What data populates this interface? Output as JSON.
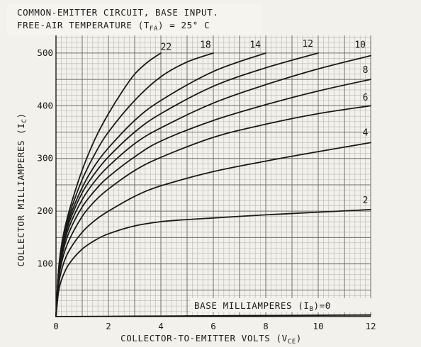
{
  "chart_data": {
    "type": "line",
    "title_lines": [
      "COMMON-EMITTER CIRCUIT, BASE INPUT.",
      "FREE-AIR TEMPERATURE (T",
      ") = 25° C"
    ],
    "title_subscript": "FA",
    "xlabel": "COLLECTOR-TO-EMITTER VOLTS (V",
    "xlabel_subscript": "CE",
    "xlabel_close": ")",
    "ylabel": "COLLECTOR MILLIAMPERES (I",
    "ylabel_subscript": "C",
    "ylabel_close": ")",
    "xlim": [
      0,
      12
    ],
    "ylim": [
      0,
      520
    ],
    "x_ticks": [
      "0",
      "2",
      "4",
      "6",
      "8",
      "10",
      "12"
    ],
    "y_ticks": [
      "100",
      "200",
      "300",
      "400",
      "500"
    ],
    "grid": true,
    "family_label": "BASE MILLIAMPERES (I",
    "family_label_subscript": "B",
    "family_label_close": ")=0",
    "series": [
      {
        "name": "0",
        "x": [
          0,
          2,
          4,
          6,
          8,
          10,
          12
        ],
        "y": [
          0,
          0.5,
          1,
          1.5,
          2,
          2.5,
          3
        ]
      },
      {
        "name": "2",
        "x": [
          0,
          0.1,
          0.25,
          0.5,
          1,
          1.5,
          2,
          3,
          4,
          5,
          6,
          8,
          10,
          12
        ],
        "y": [
          0,
          48,
          75,
          100,
          128,
          145,
          157,
          172,
          180,
          184,
          187,
          193,
          198,
          203
        ]
      },
      {
        "name": "4",
        "x": [
          0,
          0.1,
          0.25,
          0.5,
          1,
          1.5,
          2,
          3,
          4,
          6,
          8,
          10,
          12
        ],
        "y": [
          0,
          60,
          95,
          125,
          160,
          183,
          200,
          228,
          248,
          275,
          295,
          313,
          330
        ]
      },
      {
        "name": "6",
        "x": [
          0,
          0.1,
          0.25,
          0.5,
          1,
          1.5,
          2,
          3,
          4,
          6,
          8,
          10,
          12
        ],
        "y": [
          0,
          70,
          110,
          145,
          190,
          220,
          242,
          277,
          302,
          340,
          365,
          385,
          400
        ]
      },
      {
        "name": "8",
        "x": [
          0,
          0.1,
          0.25,
          0.5,
          1,
          1.5,
          2,
          3,
          4,
          6,
          8,
          10,
          12
        ],
        "y": [
          0,
          75,
          120,
          160,
          208,
          240,
          265,
          303,
          333,
          372,
          402,
          428,
          450
        ]
      },
      {
        "name": "10",
        "x": [
          0,
          0.1,
          0.25,
          0.5,
          1,
          1.5,
          2,
          3,
          4,
          6,
          8,
          10,
          12
        ],
        "y": [
          0,
          80,
          128,
          170,
          222,
          258,
          285,
          328,
          358,
          405,
          440,
          470,
          495
        ]
      },
      {
        "name": "12",
        "x": [
          0,
          0.1,
          0.25,
          0.5,
          1,
          1.5,
          2,
          3,
          4,
          6,
          8,
          10
        ],
        "y": [
          0,
          84,
          134,
          178,
          235,
          273,
          303,
          350,
          385,
          437,
          472,
          500
        ]
      },
      {
        "name": "14",
        "x": [
          0,
          0.1,
          0.25,
          0.5,
          1,
          1.5,
          2,
          3,
          4,
          6,
          8
        ],
        "y": [
          0,
          86,
          138,
          185,
          245,
          288,
          320,
          372,
          410,
          465,
          500
        ]
      },
      {
        "name": "18",
        "x": [
          0,
          0.1,
          0.25,
          0.5,
          1,
          1.5,
          2,
          3,
          4,
          5,
          6
        ],
        "y": [
          0,
          88,
          142,
          192,
          260,
          310,
          350,
          410,
          455,
          483,
          500
        ]
      },
      {
        "name": "22",
        "x": [
          0,
          0.1,
          0.25,
          0.5,
          1,
          1.5,
          2,
          2.5,
          3,
          3.5,
          4
        ],
        "y": [
          0,
          90,
          147,
          200,
          278,
          338,
          385,
          425,
          460,
          483,
          500
        ]
      }
    ],
    "curve_labels": [
      {
        "text": "22",
        "x": 4.2,
        "y": 506
      },
      {
        "text": "18",
        "x": 5.7,
        "y": 510
      },
      {
        "text": "14",
        "x": 7.6,
        "y": 510
      },
      {
        "text": "12",
        "x": 9.6,
        "y": 512
      },
      {
        "text": "10",
        "x": 11.6,
        "y": 510
      },
      {
        "text": "8",
        "x": 11.8,
        "y": 462
      },
      {
        "text": "6",
        "x": 11.8,
        "y": 410
      },
      {
        "text": "4",
        "x": 11.8,
        "y": 343
      },
      {
        "text": "2",
        "x": 11.8,
        "y": 215
      }
    ]
  }
}
